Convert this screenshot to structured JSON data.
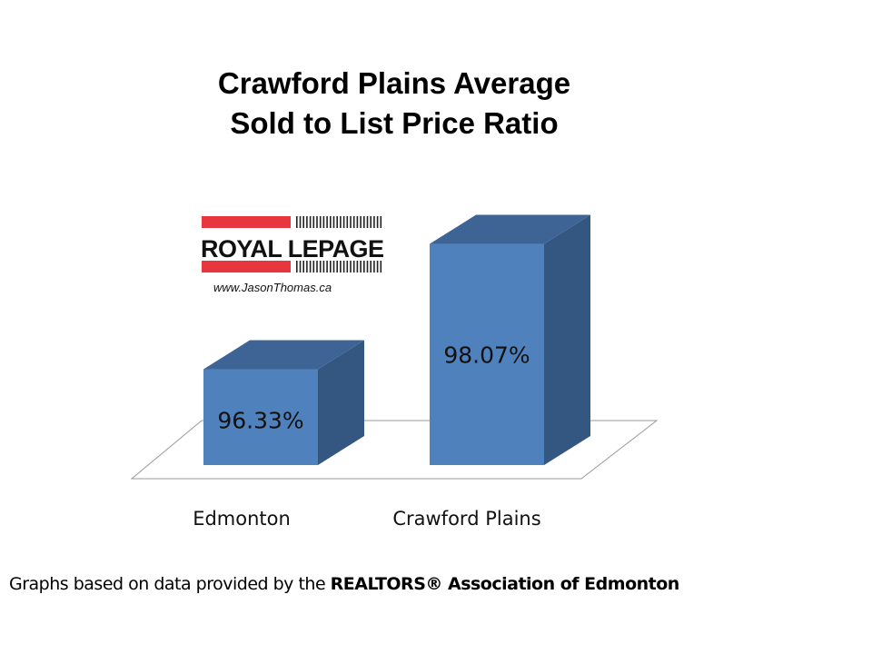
{
  "chart_data": {
    "type": "bar",
    "title_line1": "Crawford Plains Average",
    "title_line2": "Sold to List Price Ratio",
    "categories": [
      "Edmonton",
      "Crawford Plains"
    ],
    "values": [
      96.33,
      98.07
    ],
    "data_labels": [
      "96.33%",
      "98.07%"
    ],
    "xlabel": "",
    "ylabel": "",
    "ylim": [
      95,
      99
    ],
    "grid": false,
    "colors": {
      "front": "#4f81bd",
      "top": "#3d6494",
      "side": "#335780"
    }
  },
  "logo": {
    "brand": "ROYAL LEPAGE",
    "website": "www.JasonThomas.ca",
    "red": "#e8363f"
  },
  "footer": {
    "prefix": "Graphs based on data provided by the ",
    "bold": "REALTORS® Association of Edmonton"
  }
}
